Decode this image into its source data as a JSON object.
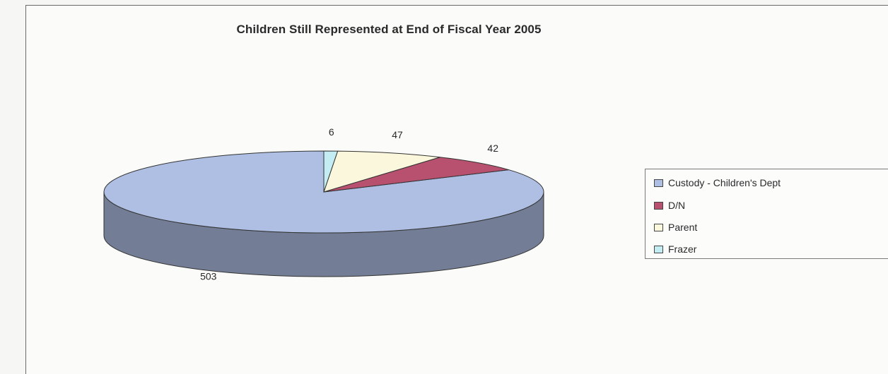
{
  "chart_data": {
    "type": "pie",
    "title": "Children Still Represented at End of Fiscal Year 2005",
    "categories": [
      "Custody - Children's Dept",
      "D/N",
      "Parent",
      "Frazer"
    ],
    "values": [
      503,
      42,
      47,
      6
    ],
    "colors": [
      "#aebfe3",
      "#b8506f",
      "#fbf7dc",
      "#c3edf2"
    ],
    "data_labels": [
      "503",
      "42",
      "47",
      "6"
    ],
    "legend": {
      "position": "right",
      "entries": [
        "Custody - Children's Dept",
        "D/N",
        "Parent",
        "Frazer"
      ]
    },
    "style": "3d"
  }
}
